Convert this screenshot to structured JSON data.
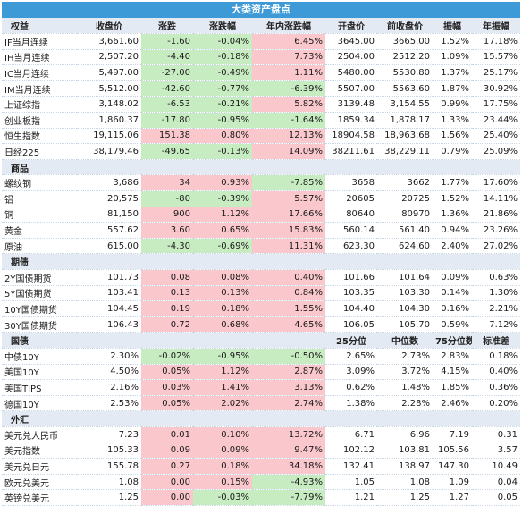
{
  "title": "大类资产盘点",
  "columns": [
    "权益",
    "收盘价",
    "涨跌",
    "涨跌幅",
    "年内涨跌幅",
    "开盘价",
    "前收盘价",
    "振幅",
    "年振幅"
  ],
  "colors": {
    "negative_bg": "#c8ecc2",
    "positive_bg": "#f9c7cc",
    "header_bg": "#e3eaf3",
    "title_bg": "#3e9ad6"
  },
  "equities": [
    [
      "IF当月连续",
      "3,661.60",
      "-1.60",
      "-0.04%",
      "6.45%",
      "3645.00",
      "3665.00",
      "1.52%",
      "17.18%"
    ],
    [
      "IH当月连续",
      "2,507.20",
      "-4.40",
      "-0.18%",
      "7.73%",
      "2504.00",
      "2512.20",
      "1.09%",
      "15.57%"
    ],
    [
      "IC当月连续",
      "5,497.00",
      "-27.00",
      "-0.49%",
      "1.11%",
      "5480.00",
      "5530.80",
      "1.37%",
      "25.17%"
    ],
    [
      "IM当月连续",
      "5,512.00",
      "-42.60",
      "-0.77%",
      "-6.39%",
      "5507.00",
      "5563.60",
      "1.87%",
      "30.92%"
    ],
    [
      "上证综指",
      "3,148.02",
      "-6.53",
      "-0.21%",
      "5.82%",
      "3139.48",
      "3,154.55",
      "0.99%",
      "17.75%"
    ],
    [
      "创业板指",
      "1,860.37",
      "-17.80",
      "-0.95%",
      "-1.64%",
      "1859.34",
      "1,878.17",
      "1.33%",
      "23.44%"
    ],
    [
      "恒生指数",
      "19,115.06",
      "151.38",
      "0.80%",
      "12.13%",
      "18904.58",
      "18,963.68",
      "1.56%",
      "25.40%"
    ],
    [
      "日经225",
      "38,179.46",
      "-49.65",
      "-0.13%",
      "14.09%",
      "38211.61",
      "38,229.11",
      "0.79%",
      "25.09%"
    ]
  ],
  "commodities_label": "商品",
  "commodities": [
    [
      "螺纹钢",
      "3,686",
      "34",
      "0.93%",
      "-7.85%",
      "3658",
      "3662",
      "1.77%",
      "17.60%"
    ],
    [
      "铝",
      "20,575",
      "-80",
      "-0.39%",
      "5.57%",
      "20605",
      "20725",
      "1.52%",
      "14.11%"
    ],
    [
      "铜",
      "81,150",
      "900",
      "1.12%",
      "17.66%",
      "80640",
      "80970",
      "1.36%",
      "21.86%"
    ],
    [
      "黄金",
      "557.62",
      "3.60",
      "0.65%",
      "15.83%",
      "560.14",
      "561.40",
      "0.94%",
      "23.26%"
    ],
    [
      "原油",
      "615.00",
      "-4.30",
      "-0.69%",
      "11.31%",
      "623.30",
      "624.60",
      "2.40%",
      "27.02%"
    ]
  ],
  "futures_label": "期债",
  "futures": [
    [
      "2Y国债期货",
      "101.73",
      "0.08",
      "0.08%",
      "0.40%",
      "101.66",
      "101.64",
      "0.09%",
      "0.63%"
    ],
    [
      "5Y国债期货",
      "103.41",
      "0.13",
      "0.13%",
      "0.84%",
      "103.35",
      "103.30",
      "0.14%",
      "1.30%"
    ],
    [
      "10Y国债期货",
      "104.45",
      "0.19",
      "0.18%",
      "1.55%",
      "104.40",
      "104.30",
      "0.16%",
      "2.21%"
    ],
    [
      "30Y国债期货",
      "106.43",
      "0.72",
      "0.68%",
      "4.65%",
      "106.05",
      "105.70",
      "0.59%",
      "7.12%"
    ]
  ],
  "bonds_header": [
    "国债",
    "",
    "",
    "",
    "",
    "25分位",
    "中位数",
    "75分位数",
    "标准差"
  ],
  "bonds": [
    [
      "中债10Y",
      "2.30%",
      "-0.02%",
      "-0.95%",
      "-0.50%",
      "2.65%",
      "2.73%",
      "2.83%",
      "0.18%"
    ],
    [
      "美国10Y",
      "4.50%",
      "0.05%",
      "1.12%",
      "2.87%",
      "3.09%",
      "3.72%",
      "4.15%",
      "0.40%"
    ],
    [
      "美国TIPS",
      "2.16%",
      "0.03%",
      "1.41%",
      "3.13%",
      "0.62%",
      "1.48%",
      "1.85%",
      "0.36%"
    ],
    [
      "德国10Y",
      "2.53%",
      "0.05%",
      "2.02%",
      "2.74%",
      "1.38%",
      "2.28%",
      "2.46%",
      "0.20%"
    ]
  ],
  "fx_label": "外汇",
  "fx": [
    [
      "美元兑人民币",
      "7.23",
      "0.01",
      "0.10%",
      "13.72%",
      "6.71",
      "6.96",
      "7.19",
      "0.31"
    ],
    [
      "美元指数",
      "105.33",
      "0.09",
      "0.09%",
      "9.47%",
      "102.12",
      "103.81",
      "105.56",
      "3.57"
    ],
    [
      "美元兑日元",
      "155.78",
      "0.27",
      "0.18%",
      "34.18%",
      "132.41",
      "138.97",
      "147.30",
      "10.49"
    ],
    [
      "欧元兑美元",
      "1.08",
      "0.00",
      "0.15%",
      "-4.93%",
      "1.05",
      "1.08",
      "1.09",
      "0.04"
    ],
    [
      "英镑兑美元",
      "1.25",
      "0.00",
      "-0.03%",
      "-7.79%",
      "1.21",
      "1.25",
      "1.27",
      "0.05"
    ]
  ]
}
